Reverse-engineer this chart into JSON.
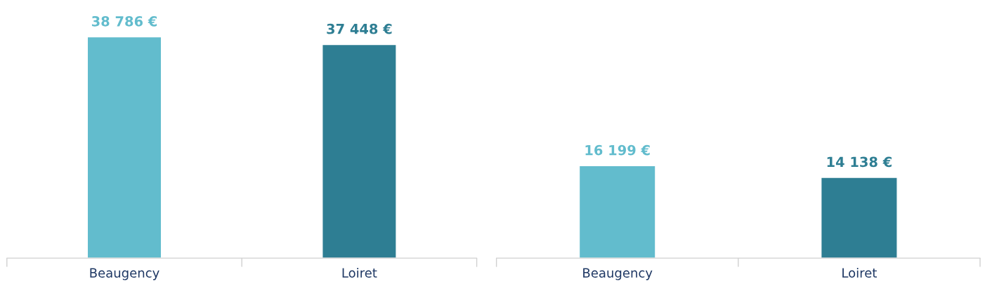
{
  "chart_data": [
    {
      "type": "bar",
      "categories": [
        "Beaugency",
        "Loiret"
      ],
      "values": [
        38786,
        37448
      ],
      "colors": [
        "#62bccd",
        "#2e7e93"
      ],
      "value_labels": [
        "38 786 €",
        "37 448 €"
      ],
      "tick_labels": "x",
      "grid": false,
      "legend": false
    },
    {
      "type": "bar",
      "categories": [
        "Beaugency",
        "Loiret"
      ],
      "values": [
        16199,
        14138
      ],
      "colors": [
        "#62bccd",
        "#2e7e93"
      ],
      "value_labels": [
        "16 199 €",
        "14 138 €"
      ],
      "tick_labels": "x",
      "grid": false,
      "legend": false
    }
  ]
}
